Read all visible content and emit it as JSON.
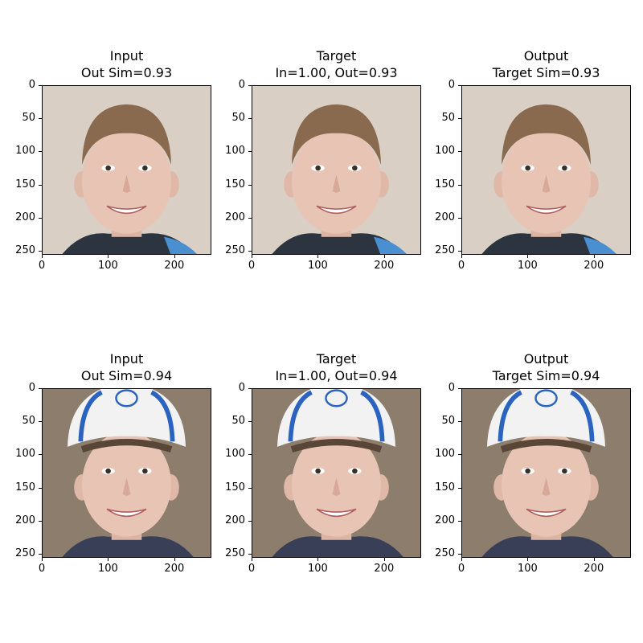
{
  "figure": {
    "rows": [
      {
        "subject": "boy",
        "panels": [
          {
            "title_line1": "Input",
            "title_line2": "Out Sim=0.93"
          },
          {
            "title_line1": "Target",
            "title_line2": "In=1.00, Out=0.93"
          },
          {
            "title_line1": "Output",
            "title_line2": "Target Sim=0.93"
          }
        ]
      },
      {
        "subject": "boy-with-cap",
        "panels": [
          {
            "title_line1": "Input",
            "title_line2": "Out Sim=0.94"
          },
          {
            "title_line1": "Target",
            "title_line2": "In=1.00, Out=0.94"
          },
          {
            "title_line1": "Output",
            "title_line2": "Target Sim=0.94"
          }
        ]
      }
    ],
    "x_ticks": [
      "0",
      "100",
      "200"
    ],
    "y_ticks": [
      "0",
      "50",
      "100",
      "150",
      "200",
      "250"
    ],
    "colors": {
      "background_row1": "#d9cfc4",
      "background_row2": "#8c7d6d",
      "skin": "#e8c4b4",
      "hair": "#8a6a4e",
      "cap": "#f2f2f2",
      "cap_stripe": "#2a64c0"
    }
  }
}
